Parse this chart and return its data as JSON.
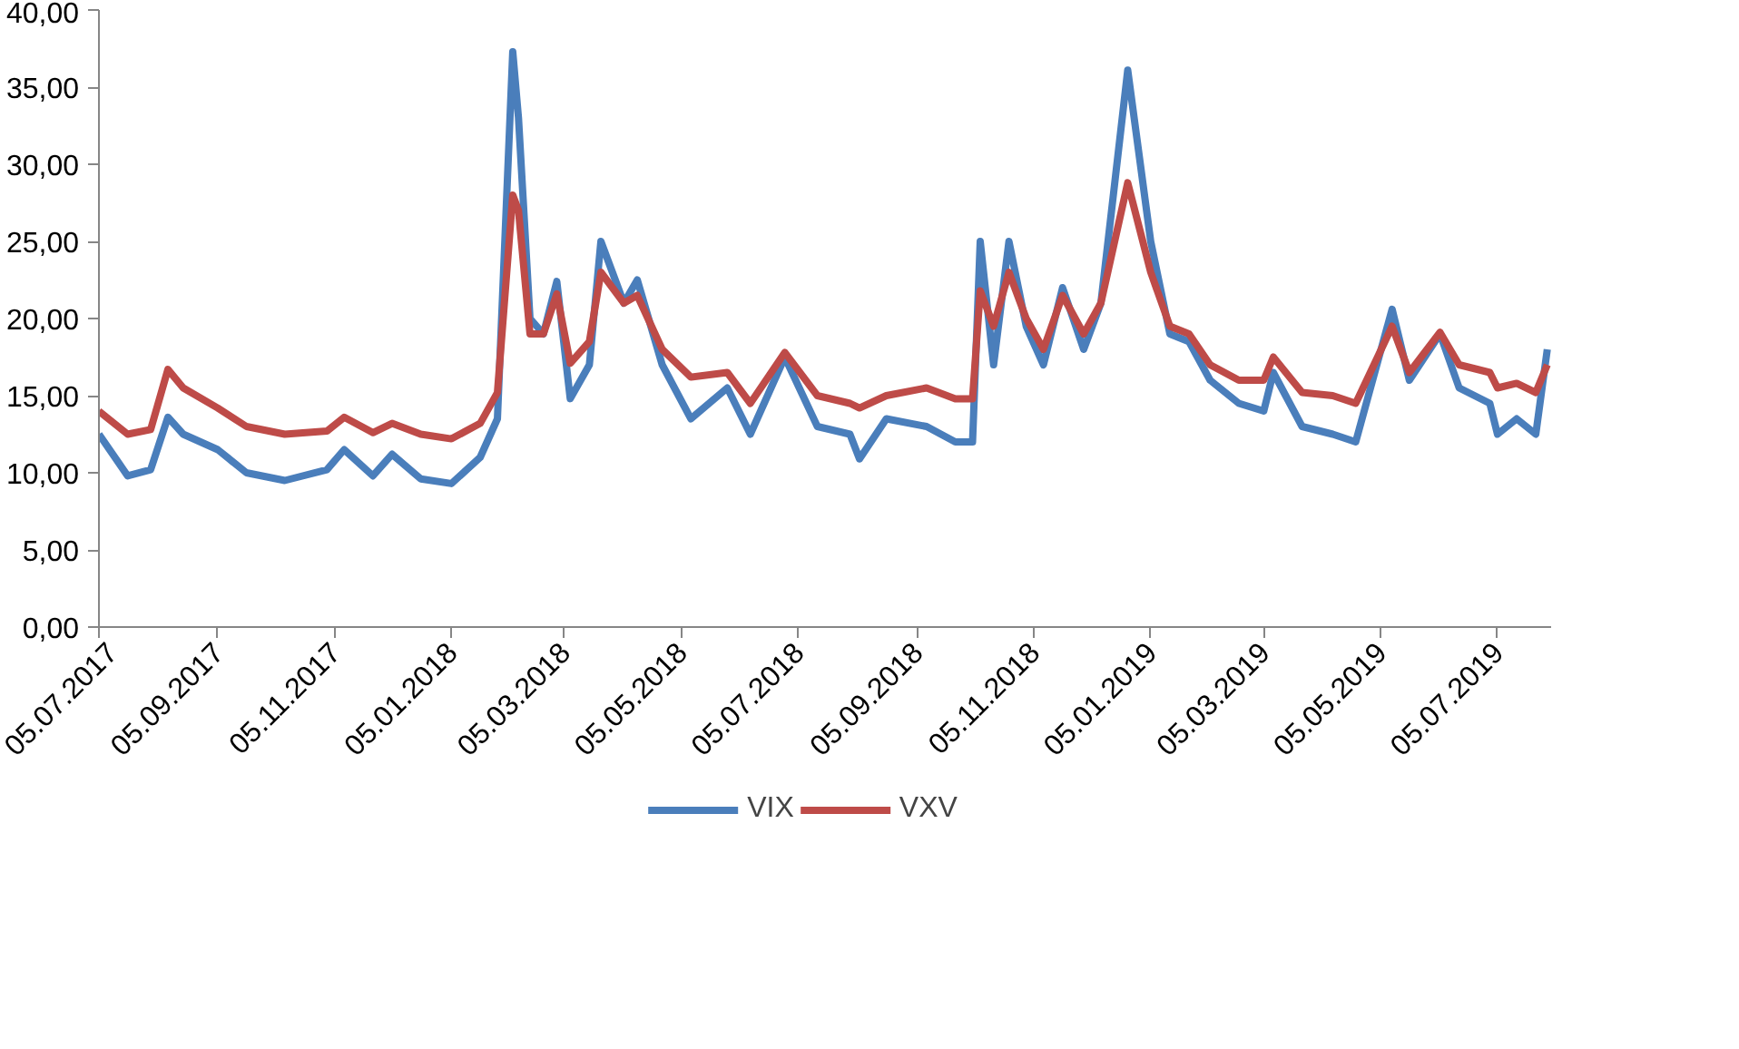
{
  "chart_data": {
    "type": "line",
    "x": [
      "2017-07-05",
      "2017-07-20",
      "2017-08-01",
      "2017-08-10",
      "2017-08-18",
      "2017-09-05",
      "2017-09-20",
      "2017-10-10",
      "2017-11-01",
      "2017-11-10",
      "2017-11-25",
      "2017-12-05",
      "2017-12-20",
      "2018-01-05",
      "2018-01-20",
      "2018-01-29",
      "2018-02-06",
      "2018-02-09",
      "2018-02-15",
      "2018-02-22",
      "2018-03-01",
      "2018-03-08",
      "2018-03-18",
      "2018-03-24",
      "2018-04-05",
      "2018-04-12",
      "2018-04-25",
      "2018-05-10",
      "2018-05-29",
      "2018-06-10",
      "2018-06-28",
      "2018-07-15",
      "2018-08-01",
      "2018-08-06",
      "2018-08-20",
      "2018-09-10",
      "2018-09-25",
      "2018-10-04",
      "2018-10-08",
      "2018-10-15",
      "2018-10-23",
      "2018-11-01",
      "2018-11-10",
      "2018-11-20",
      "2018-12-01",
      "2018-12-10",
      "2018-12-24",
      "2019-01-05",
      "2019-01-15",
      "2019-01-25",
      "2019-02-05",
      "2019-02-20",
      "2019-03-05",
      "2019-03-10",
      "2019-03-25",
      "2019-04-10",
      "2019-04-22",
      "2019-05-11",
      "2019-05-20",
      "2019-06-05",
      "2019-06-15",
      "2019-07-01",
      "2019-07-05",
      "2019-07-15",
      "2019-07-25",
      "2019-07-31"
    ],
    "series": [
      {
        "name": "VIX",
        "color": "#4a7ebb",
        "values": [
          12.5,
          9.8,
          10.2,
          13.6,
          12.5,
          11.5,
          10,
          9.5,
          10.2,
          11.5,
          9.8,
          11.2,
          9.6,
          9.3,
          11,
          13.5,
          37.3,
          33,
          20,
          19,
          22.4,
          14.8,
          17,
          25,
          21,
          22.5,
          17,
          13.5,
          15.5,
          12.5,
          17.5,
          13,
          12.5,
          10.9,
          13.5,
          13,
          12,
          12,
          25,
          17,
          25,
          19.5,
          17,
          22,
          18,
          21,
          36.1,
          25,
          19,
          18.5,
          16,
          14.5,
          14,
          16.5,
          13,
          12.5,
          12,
          20.6,
          16,
          19,
          15.5,
          14.5,
          12.5,
          13.5,
          12.5,
          18
        ]
      },
      {
        "name": "VXV",
        "color": "#be4b48",
        "values": [
          14,
          12.5,
          12.8,
          16.7,
          15.5,
          14.2,
          13,
          12.5,
          12.7,
          13.6,
          12.6,
          13.2,
          12.5,
          12.2,
          13.2,
          15.2,
          28,
          27,
          19,
          19,
          21.6,
          17.1,
          18.5,
          23,
          21,
          21.5,
          18,
          16.2,
          16.5,
          14.5,
          17.8,
          15,
          14.5,
          14.2,
          15,
          15.5,
          14.8,
          14.8,
          21.8,
          19.5,
          23,
          20,
          18,
          21.5,
          19,
          21,
          28.8,
          23,
          19.5,
          19,
          17,
          16,
          16,
          17.5,
          15.2,
          15,
          14.5,
          19.5,
          16.5,
          19.1,
          17,
          16.5,
          15.5,
          15.8,
          15.2,
          17
        ]
      }
    ],
    "xlim": [
      "2017-07-05",
      "2019-08-02"
    ],
    "xticks": [
      {
        "value": "2017-07-05",
        "label": "05.07.2017"
      },
      {
        "value": "2017-09-05",
        "label": "05.09.2017"
      },
      {
        "value": "2017-11-05",
        "label": "05.11.2017"
      },
      {
        "value": "2018-01-05",
        "label": "05.01.2018"
      },
      {
        "value": "2018-03-05",
        "label": "05.03.2018"
      },
      {
        "value": "2018-05-05",
        "label": "05.05.2018"
      },
      {
        "value": "2018-07-05",
        "label": "05.07.2018"
      },
      {
        "value": "2018-09-05",
        "label": "05.09.2018"
      },
      {
        "value": "2018-11-05",
        "label": "05.11.2018"
      },
      {
        "value": "2019-01-05",
        "label": "05.01.2019"
      },
      {
        "value": "2019-03-05",
        "label": "05.03.2019"
      },
      {
        "value": "2019-05-05",
        "label": "05.05.2019"
      },
      {
        "value": "2019-07-05",
        "label": "05.07.2019"
      }
    ],
    "ylim": [
      0,
      40
    ],
    "yticks": [
      {
        "value": 0,
        "label": "0,00"
      },
      {
        "value": 5,
        "label": "5,00"
      },
      {
        "value": 10,
        "label": "10,00"
      },
      {
        "value": 15,
        "label": "15,00"
      },
      {
        "value": 20,
        "label": "20,00"
      },
      {
        "value": 25,
        "label": "25,00"
      },
      {
        "value": 30,
        "label": "30,00"
      },
      {
        "value": 35,
        "label": "35,00"
      },
      {
        "value": 40,
        "label": "40,00"
      }
    ],
    "grid": false,
    "legend": "bottom",
    "line_style": "solid",
    "marker": "none"
  }
}
